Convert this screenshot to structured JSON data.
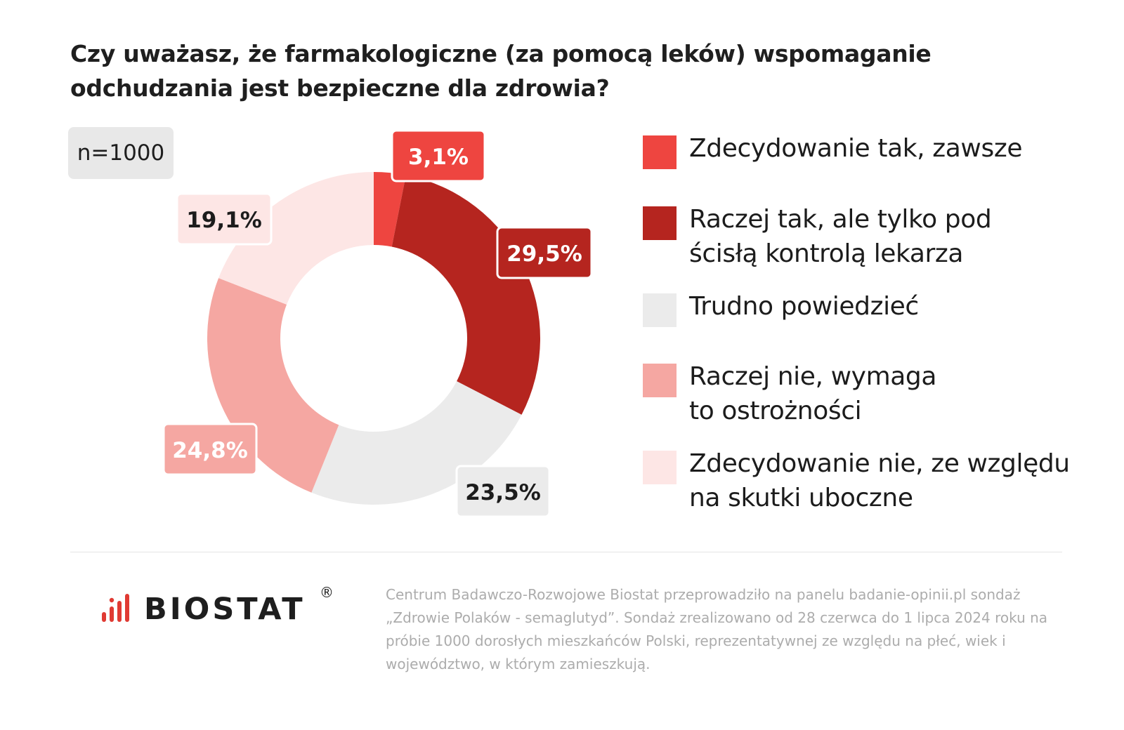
{
  "title": "Czy uważasz, że farmakologiczne (za pomocą leków) wspomaganie odchudzania jest bezpieczne dla zdrowia?",
  "sample": "n=1000",
  "chart_data": {
    "type": "pie",
    "title": "Czy uważasz, że farmakologiczne (za pomocą leków) wspomaganie odchudzania jest bezpieczne dla zdrowia?",
    "legend_position": "right",
    "donut": true,
    "slices": [
      {
        "name": "Zdecydowanie tak, zawsze",
        "value": 3.1,
        "label": "3,1%",
        "color": "#ee4540",
        "label_color": "#ffffff"
      },
      {
        "name": "Raczej tak, ale tylko pod ścisłą kontrolą lekarza",
        "value": 29.5,
        "label": "29,5%",
        "color": "#b5251f",
        "label_color": "#ffffff"
      },
      {
        "name": "Trudno powiedzieć",
        "value": 23.5,
        "label": "23,5%",
        "color": "#ebebeb",
        "label_color": "#1c1c1c"
      },
      {
        "name": "Raczej nie, wymaga to ostrożności",
        "value": 24.8,
        "label": "24,8%",
        "color": "#f5a7a2",
        "label_color": "#ffffff"
      },
      {
        "name": "Zdecydowanie nie, ze względu na skutki uboczne",
        "value": 19.1,
        "label": "19,1%",
        "color": "#fde6e5",
        "label_color": "#1c1c1c"
      }
    ]
  },
  "legend": [
    {
      "label": "Zdecydowanie tak, zawsze",
      "color": "#ee4540"
    },
    {
      "label": "Raczej tak, ale tylko pod ścisłą kontrolą lekarza",
      "color": "#b5251f"
    },
    {
      "label": "Trudno powiedzieć",
      "color": "#ebebeb"
    },
    {
      "label": "Raczej nie, wymaga to ostrożności",
      "color": "#f5a7a2"
    },
    {
      "label": "Zdecydowanie nie, ze względu na skutki uboczne",
      "color": "#fde6e5"
    }
  ],
  "logo": {
    "text": "BIOSTAT",
    "registered": "®",
    "icon": "bar-signal-icon",
    "color": "#e03a33"
  },
  "footnote": "Centrum Badawczo-Rozwojowe Biostat przeprowadziło na panelu badanie-opinii.pl sondaż „Zdrowie Polaków - semaglutyd”. Sondaż zrealizowano od 28 czerwca do 1 lipca 2024 roku na próbie 1000 dorosłych mieszkańców Polski, reprezentatywnej ze względu na płeć, wiek i województwo, w którym zamieszkują."
}
